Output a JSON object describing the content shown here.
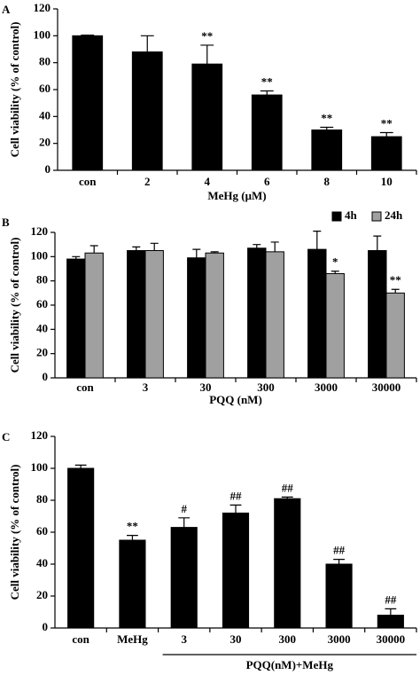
{
  "chart_data": [
    {
      "type": "bar",
      "panel_label": "A",
      "ylabel": "Cell viability (% of control)",
      "xlabel": "MeHg (μM)",
      "categories": [
        "con",
        "2",
        "4",
        "6",
        "8",
        "10"
      ],
      "values": [
        100,
        88,
        79,
        56,
        30,
        25
      ],
      "errors": [
        0.5,
        12,
        14,
        3,
        2,
        3
      ],
      "bar_labels": [
        null,
        null,
        "**",
        "**",
        "**",
        "**"
      ],
      "color": "#000000",
      "ylim": [
        0,
        120
      ],
      "yticks": [
        0,
        20,
        40,
        60,
        80,
        100,
        120
      ]
    },
    {
      "type": "bar",
      "panel_label": "B",
      "ylabel": "Cell viability (% of control)",
      "xlabel": "PQQ (nM)",
      "categories": [
        "con",
        "3",
        "30",
        "300",
        "3000",
        "30000"
      ],
      "series": [
        {
          "name": "4h",
          "color": "#000000",
          "values": [
            98,
            105,
            99,
            107,
            106,
            105
          ],
          "errors": [
            2,
            3,
            7,
            3,
            15,
            12
          ],
          "bar_labels": [
            null,
            null,
            null,
            null,
            null,
            null
          ]
        },
        {
          "name": "24h",
          "color": "#a0a0a0",
          "values": [
            103,
            105,
            103,
            104,
            86,
            70
          ],
          "errors": [
            6,
            6,
            1,
            8,
            2,
            3
          ],
          "bar_labels": [
            null,
            null,
            null,
            null,
            "*",
            "**"
          ]
        }
      ],
      "legend": "top right",
      "ylim": [
        0,
        120
      ],
      "yticks": [
        0,
        20,
        40,
        60,
        80,
        100,
        120
      ]
    },
    {
      "type": "bar",
      "panel_label": "C",
      "ylabel": "Cell viability (% of control)",
      "xlabel": "PQQ(nM)+MeHg",
      "categories": [
        "con",
        "MeHg",
        "3",
        "30",
        "300",
        "3000",
        "30000"
      ],
      "values": [
        100,
        55,
        63,
        72,
        81,
        40,
        8
      ],
      "errors": [
        2,
        3,
        6,
        5,
        1,
        3,
        4
      ],
      "bar_labels": [
        null,
        "**",
        "#",
        "##",
        "##",
        "##",
        "##"
      ],
      "color": "#000000",
      "ylim": [
        0,
        120
      ],
      "yticks": [
        0,
        20,
        40,
        60,
        80,
        100,
        120
      ]
    }
  ]
}
